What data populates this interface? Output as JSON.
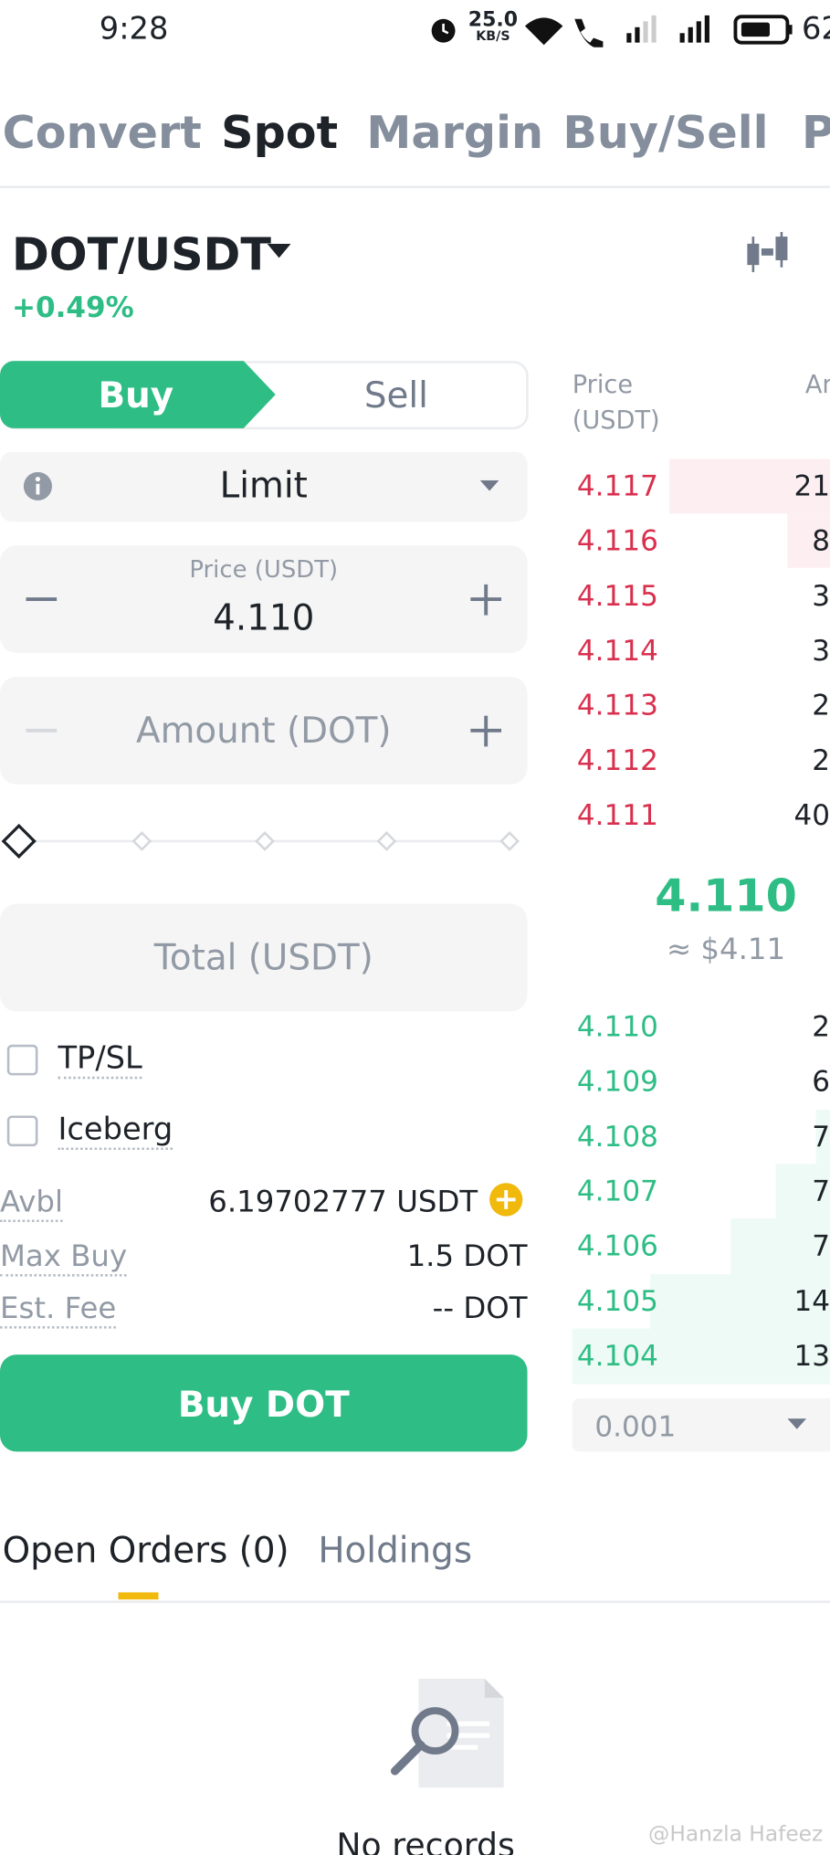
{
  "status_bar": {
    "time": "9:28",
    "speed": "25.0",
    "speed_unit": "KB/S",
    "battery": "62"
  },
  "top_tabs": [
    "Convert",
    "Spot",
    "Margin",
    "Buy/Sell",
    "P"
  ],
  "pair": {
    "symbol": "DOT/USDT",
    "change": "+0.49%"
  },
  "order_form": {
    "buy_tab": "Buy",
    "sell_tab": "Sell",
    "order_type": "Limit",
    "price_label": "Price (USDT)",
    "price_value": "4.110",
    "amount_placeholder": "Amount (DOT)",
    "total_placeholder": "Total (USDT)",
    "checkboxes": [
      "TP/SL",
      "Iceberg"
    ],
    "info_rows": [
      {
        "label": "Avbl",
        "value": "6.19702777 USDT"
      },
      {
        "label": "Max Buy",
        "value": "1.5 DOT"
      },
      {
        "label": "Est. Fee",
        "value": "-- DOT"
      }
    ],
    "submit": "Buy DOT"
  },
  "order_book": {
    "price_header": "Price",
    "price_header_unit": "(USDT)",
    "amount_header": "An",
    "asks": [
      {
        "price": "4.117",
        "amount": "21"
      },
      {
        "price": "4.116",
        "amount": "8"
      },
      {
        "price": "4.115",
        "amount": "3"
      },
      {
        "price": "4.114",
        "amount": "3"
      },
      {
        "price": "4.113",
        "amount": "2"
      },
      {
        "price": "4.112",
        "amount": "2"
      },
      {
        "price": "4.111",
        "amount": "40"
      }
    ],
    "last_price": "4.110",
    "last_price_fiat": "≈ $4.11",
    "bids": [
      {
        "price": "4.110",
        "amount": "2"
      },
      {
        "price": "4.109",
        "amount": "6"
      },
      {
        "price": "4.108",
        "amount": "7"
      },
      {
        "price": "4.107",
        "amount": "7"
      },
      {
        "price": "4.106",
        "amount": "7"
      },
      {
        "price": "4.105",
        "amount": "14"
      },
      {
        "price": "4.104",
        "amount": "13"
      }
    ],
    "precision": "0.001"
  },
  "bottom_tabs": [
    "Open Orders (0)",
    "Holdings"
  ],
  "empty_state": "No records",
  "watermark": "@Hanzla Hafeez"
}
